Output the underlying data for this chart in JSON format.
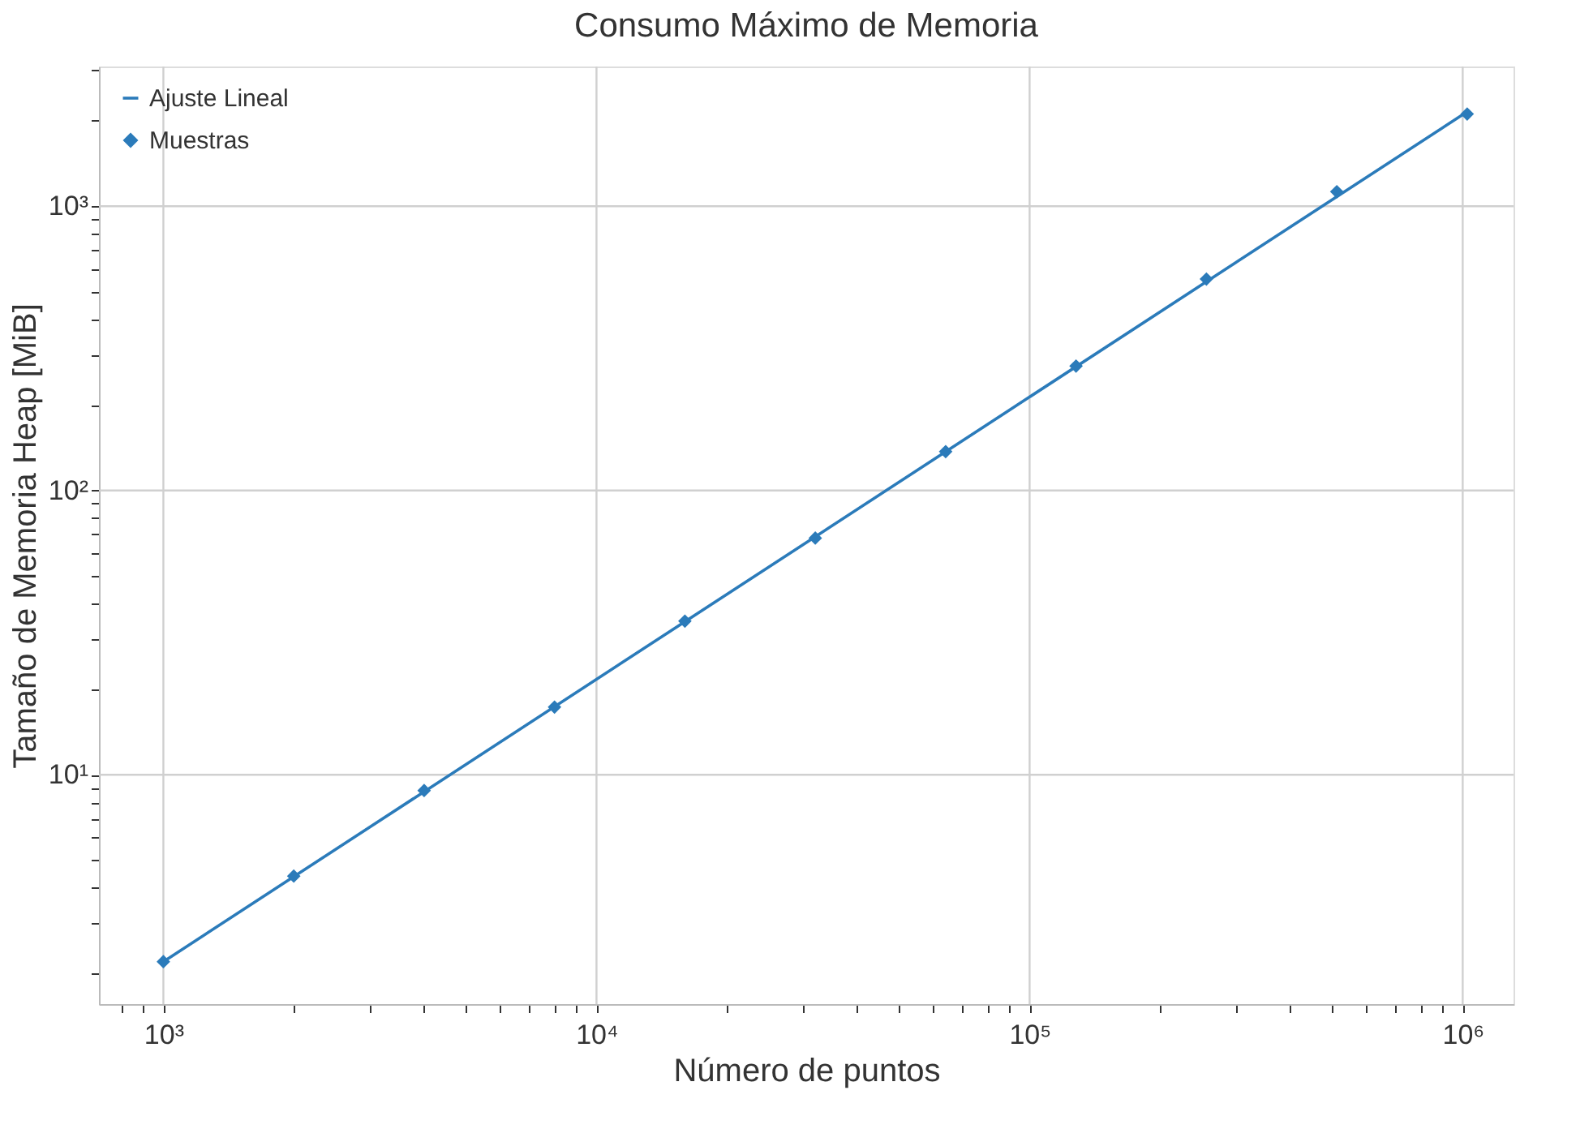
{
  "chart_data": {
    "type": "scatter",
    "title": "Consumo Máximo de Memoria",
    "xlabel": "Número de puntos",
    "ylabel": "Tamaño de Memoria Heap [MiB]",
    "log": "xy",
    "grid": true,
    "legend": "top left",
    "xlim": [
      710,
      1310000
    ],
    "ylim": [
      1.56,
      3100
    ],
    "xticks": [
      {
        "value": 800,
        "label": null
      },
      {
        "value": 900,
        "label": null
      },
      {
        "value": 1000,
        "label": "10³"
      },
      {
        "value": 2000,
        "label": null
      },
      {
        "value": 3000,
        "label": null
      },
      {
        "value": 4000,
        "label": null
      },
      {
        "value": 5000,
        "label": null
      },
      {
        "value": 6000,
        "label": null
      },
      {
        "value": 7000,
        "label": null
      },
      {
        "value": 8000,
        "label": null
      },
      {
        "value": 9000,
        "label": null
      },
      {
        "value": 10000,
        "label": "10⁴"
      },
      {
        "value": 20000,
        "label": null
      },
      {
        "value": 30000,
        "label": null
      },
      {
        "value": 40000,
        "label": null
      },
      {
        "value": 50000,
        "label": null
      },
      {
        "value": 60000,
        "label": null
      },
      {
        "value": 70000,
        "label": null
      },
      {
        "value": 80000,
        "label": null
      },
      {
        "value": 90000,
        "label": null
      },
      {
        "value": 100000,
        "label": "10⁵"
      },
      {
        "value": 200000,
        "label": null
      },
      {
        "value": 300000,
        "label": null
      },
      {
        "value": 400000,
        "label": null
      },
      {
        "value": 500000,
        "label": null
      },
      {
        "value": 600000,
        "label": null
      },
      {
        "value": 700000,
        "label": null
      },
      {
        "value": 800000,
        "label": null
      },
      {
        "value": 900000,
        "label": null
      },
      {
        "value": 1000000,
        "label": "10⁶"
      }
    ],
    "yticks": [
      {
        "value": 2,
        "label": null
      },
      {
        "value": 3,
        "label": null
      },
      {
        "value": 4,
        "label": null
      },
      {
        "value": 5,
        "label": null
      },
      {
        "value": 6,
        "label": null
      },
      {
        "value": 7,
        "label": null
      },
      {
        "value": 8,
        "label": null
      },
      {
        "value": 9,
        "label": null
      },
      {
        "value": 10,
        "label": "10¹"
      },
      {
        "value": 20,
        "label": null
      },
      {
        "value": 30,
        "label": null
      },
      {
        "value": 40,
        "label": null
      },
      {
        "value": 50,
        "label": null
      },
      {
        "value": 60,
        "label": null
      },
      {
        "value": 70,
        "label": null
      },
      {
        "value": 80,
        "label": null
      },
      {
        "value": 90,
        "label": null
      },
      {
        "value": 100,
        "label": "10²"
      },
      {
        "value": 200,
        "label": null
      },
      {
        "value": 300,
        "label": null
      },
      {
        "value": 400,
        "label": null
      },
      {
        "value": 500,
        "label": null
      },
      {
        "value": 600,
        "label": null
      },
      {
        "value": 700,
        "label": null
      },
      {
        "value": 800,
        "label": null
      },
      {
        "value": 900,
        "label": null
      },
      {
        "value": 1000,
        "label": "10³"
      },
      {
        "value": 2000,
        "label": null
      },
      {
        "value": 3000,
        "label": null
      }
    ],
    "series": [
      {
        "name": "Ajuste Lineal",
        "type": "line",
        "color": "#2b7bba",
        "marker": "none",
        "line_style": "solid",
        "x": [
          1000,
          1024000
        ],
        "values": [
          2.2,
          2150
        ]
      },
      {
        "name": "Muestras",
        "color": "#2b7bba",
        "marker": "diamond",
        "x": [
          1000,
          2000,
          4000,
          8000,
          16000,
          32000,
          64000,
          128000,
          256000,
          512000,
          1024000
        ],
        "values": [
          2.2,
          4.4,
          8.8,
          17.3,
          34.7,
          68,
          137,
          274,
          554,
          1125,
          2110
        ]
      }
    ]
  }
}
